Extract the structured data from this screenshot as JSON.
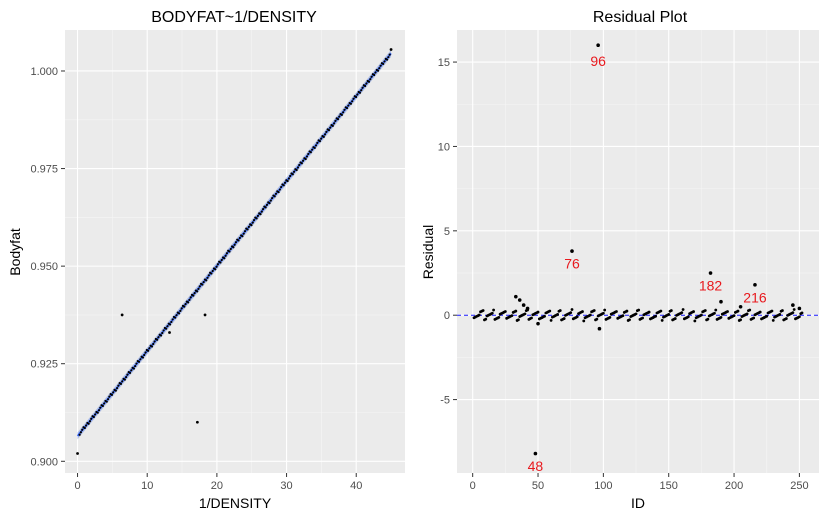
{
  "chart_data": [
    {
      "type": "scatter",
      "title": "BODYFAT~1/DENSITY",
      "xlabel": "1/DENSITY",
      "ylabel": "Bodyfat",
      "xlim": [
        -1.8,
        47.0
      ],
      "ylim": [
        0.897,
        1.0105
      ],
      "x_ticks": [
        0,
        10,
        20,
        30,
        40
      ],
      "y_ticks": [
        0.9,
        0.925,
        0.95,
        0.975,
        1.0
      ],
      "x_tick_labels": [
        "0",
        "10",
        "20",
        "30",
        "40"
      ],
      "y_tick_labels": [
        "0.900",
        "0.925",
        "0.950",
        "0.975",
        "1.000"
      ],
      "grid": true,
      "fit_line": {
        "color": "#3366ff",
        "band_color": "#9fb3e6",
        "x": [
          0,
          45
        ],
        "y": [
          0.9065,
          1.0045
        ]
      },
      "outliers": [
        {
          "x": 0.0,
          "y": 0.902
        },
        {
          "x": 6.4,
          "y": 0.9375
        },
        {
          "x": 13.2,
          "y": 0.933
        },
        {
          "x": 17.2,
          "y": 0.91
        },
        {
          "x": 18.3,
          "y": 0.9375
        },
        {
          "x": 45.0,
          "y": 1.0055
        }
      ]
    },
    {
      "type": "scatter",
      "title": "Residual Plot",
      "xlabel": "ID",
      "ylabel": "Residual",
      "xlim": [
        -12,
        265
      ],
      "ylim": [
        -9.35,
        16.9
      ],
      "x_ticks": [
        0,
        50,
        100,
        150,
        200,
        250
      ],
      "y_ticks": [
        -5,
        0,
        5,
        10,
        15
      ],
      "x_tick_labels": [
        "0",
        "50",
        "100",
        "150",
        "200",
        "250"
      ],
      "y_tick_labels": [
        "-5",
        "0",
        "5",
        "10",
        "15"
      ],
      "grid": true,
      "reference_line": {
        "y": 0,
        "color": "#1a1aff",
        "style": "dashed"
      },
      "points": [
        {
          "x": 48,
          "y": -8.2
        },
        {
          "x": 76,
          "y": 3.8
        },
        {
          "x": 96,
          "y": 16.0
        },
        {
          "x": 182,
          "y": 2.5
        },
        {
          "x": 216,
          "y": 1.8
        },
        {
          "x": 33,
          "y": 1.1
        },
        {
          "x": 36,
          "y": 0.9
        },
        {
          "x": 39,
          "y": 0.6
        },
        {
          "x": 42,
          "y": 0.4
        },
        {
          "x": 50,
          "y": -0.5
        },
        {
          "x": 97,
          "y": -0.8
        },
        {
          "x": 190,
          "y": 0.8
        },
        {
          "x": 205,
          "y": 0.5
        },
        {
          "x": 245,
          "y": 0.6
        },
        {
          "x": 250,
          "y": 0.4
        }
      ],
      "annotations": [
        {
          "label": "96",
          "x": 96,
          "y": 15.3
        },
        {
          "label": "76",
          "x": 76,
          "y": 3.3
        },
        {
          "label": "182",
          "x": 182,
          "y": 2.0
        },
        {
          "label": "216",
          "x": 216,
          "y": 1.3
        },
        {
          "label": "48",
          "x": 48,
          "y": -8.7
        }
      ],
      "annotation_color": "#e8191e"
    }
  ]
}
